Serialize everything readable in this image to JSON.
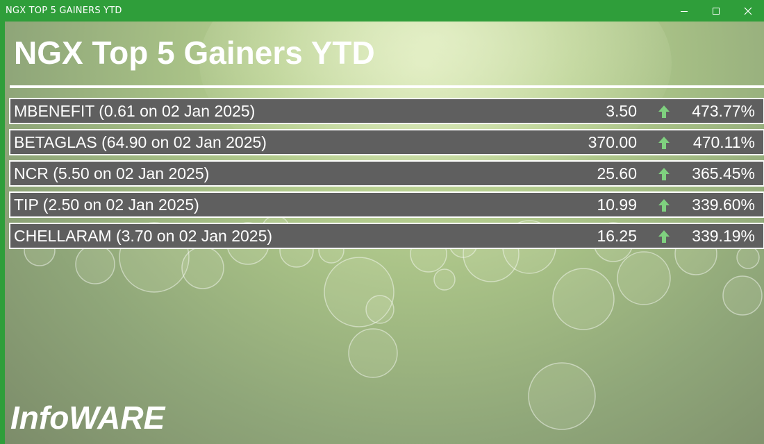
{
  "window": {
    "title": "NGX TOP 5 GAINERS YTD",
    "titlebar_color": "#2f9e3a"
  },
  "heading": "NGX Top 5 Gainers YTD",
  "gainers": [
    {
      "name": "MBENEFIT (0.61 on 02 Jan 2025)",
      "price": "3.50",
      "change": "473.77%",
      "direction": "up-arrow-icon"
    },
    {
      "name": "BETAGLAS (64.90 on 02 Jan 2025)",
      "price": "370.00",
      "change": "470.11%",
      "direction": "up-arrow-icon"
    },
    {
      "name": "NCR (5.50 on 02 Jan 2025)",
      "price": "25.60",
      "change": "365.45%",
      "direction": "up-arrow-icon"
    },
    {
      "name": "TIP (2.50 on 02 Jan 2025)",
      "price": "10.99",
      "change": "339.60%",
      "direction": "up-arrow-icon"
    },
    {
      "name": "CHELLARAM (3.70 on 02 Jan 2025)",
      "price": "16.25",
      "change": "339.19%",
      "direction": "up-arrow-icon"
    }
  ],
  "logo": "InfoWARE",
  "colors": {
    "row_background": "#5f5f5f",
    "arrow_green": "#7fd17f"
  }
}
